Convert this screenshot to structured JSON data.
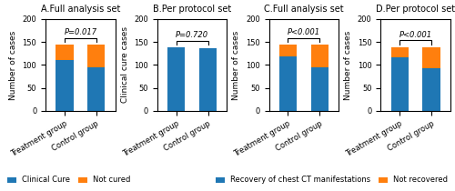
{
  "chart_data": [
    {
      "type": "bar",
      "stacked": true,
      "title": "A.Full analysis set",
      "y_label": "Number of cases",
      "categories": [
        "Treatment group",
        "Control group"
      ],
      "series": [
        {
          "name": "Clinical Cure",
          "values": [
            111,
            95
          ]
        },
        {
          "name": "Not cured",
          "values": [
            33,
            49
          ]
        }
      ],
      "ylim": [
        0,
        200
      ],
      "yticks": [
        0,
        50,
        100,
        150,
        200
      ],
      "annotations": [
        "P=0.017"
      ],
      "legend": "lower left"
    },
    {
      "type": "bar",
      "stacked": true,
      "title": "B.Per protocol set",
      "y_label": "Clinical cure cases",
      "categories": [
        "Treatment group",
        "Control group"
      ],
      "series": [
        {
          "name": "Clinical Cure",
          "values": [
            138,
            137
          ]
        },
        {
          "name": "Not cured",
          "values": [
            0,
            0
          ]
        }
      ],
      "ylim": [
        0,
        200
      ],
      "yticks": [
        0,
        50,
        100,
        150,
        200
      ],
      "annotations": [
        "P=0.720"
      ]
    },
    {
      "type": "bar",
      "stacked": true,
      "title": "C.Full analysis set",
      "y_label": "Number of cases",
      "categories": [
        "Treatment group",
        "Control group"
      ],
      "series": [
        {
          "name": "Recovery of chest CT manifestations",
          "values": [
            119,
            95
          ]
        },
        {
          "name": "Not recovered",
          "values": [
            25,
            49
          ]
        }
      ],
      "ylim": [
        0,
        200
      ],
      "yticks": [
        0,
        50,
        100,
        150,
        200
      ],
      "annotations": [
        "P<0.001"
      ],
      "legend": "lower right"
    },
    {
      "type": "bar",
      "stacked": true,
      "title": "D.Per protocol set",
      "y_label": "Number of cases",
      "categories": [
        "Treatment group",
        "Control group"
      ],
      "series": [
        {
          "name": "Recovery of chest CT manifestations",
          "values": [
            116,
            93
          ]
        },
        {
          "name": "Not recovered",
          "values": [
            22,
            46
          ]
        }
      ],
      "ylim": [
        0,
        200
      ],
      "yticks": [
        0,
        50,
        100,
        150,
        200
      ],
      "annotations": [
        "P<0.001"
      ]
    }
  ]
}
